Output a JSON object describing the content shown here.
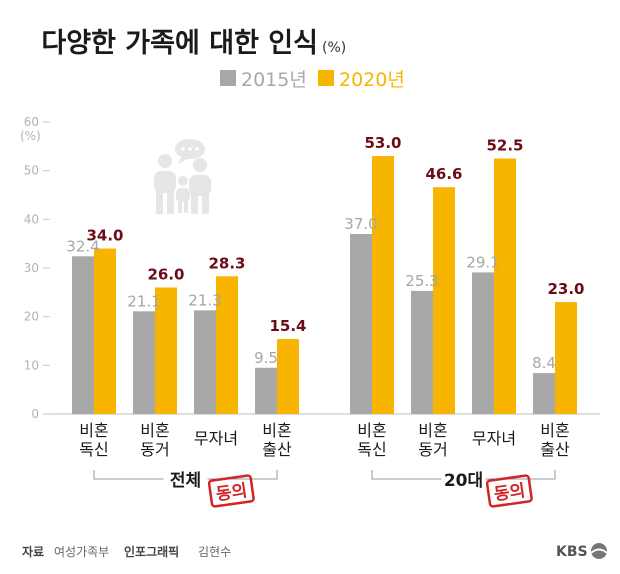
{
  "chart_data": {
    "type": "bar",
    "title": "다양한 가족에 대한 인식",
    "unit": "(%)",
    "y_axis_unit": "(%)",
    "ylim": [
      0,
      60
    ],
    "yticks": [
      0,
      10,
      20,
      30,
      40,
      50,
      60
    ],
    "legend": [
      "2015년",
      "2020년"
    ],
    "legend_placement": "top-center",
    "colors": {
      "2015": "#a8a8a8",
      "2020": "#f7b500",
      "value2020": "#6b0d16",
      "stamp": "#d42426"
    },
    "groups": [
      {
        "name": "전체",
        "categories": [
          [
            "비혼",
            "독신"
          ],
          [
            "비혼",
            "동거"
          ],
          [
            "무자녀"
          ],
          [
            "비혼",
            "출산"
          ]
        ],
        "series": [
          {
            "name": "2015년",
            "values": [
              32.4,
              21.1,
              21.3,
              9.5
            ]
          },
          {
            "name": "2020년",
            "values": [
              34.0,
              26.0,
              28.3,
              15.4
            ]
          }
        ]
      },
      {
        "name": "20대",
        "categories": [
          [
            "비혼",
            "독신"
          ],
          [
            "비혼",
            "동거"
          ],
          [
            "무자녀"
          ],
          [
            "비혼",
            "출산"
          ]
        ],
        "series": [
          {
            "name": "2015년",
            "values": [
              37.0,
              25.3,
              29.1,
              8.4
            ]
          },
          {
            "name": "2020년",
            "values": [
              53.0,
              46.6,
              52.5,
              23.0
            ]
          }
        ]
      }
    ],
    "stamp": "동의"
  },
  "footer": {
    "source_label": "자료",
    "source": "여성가족부",
    "graphic_label": "인포그래픽",
    "graphic": "김현수",
    "logo": "KBS",
    "logo_icon": "kbs-logo-icon"
  },
  "icons": {
    "family": "family-icon",
    "speech": "speech-bubble-icon"
  }
}
